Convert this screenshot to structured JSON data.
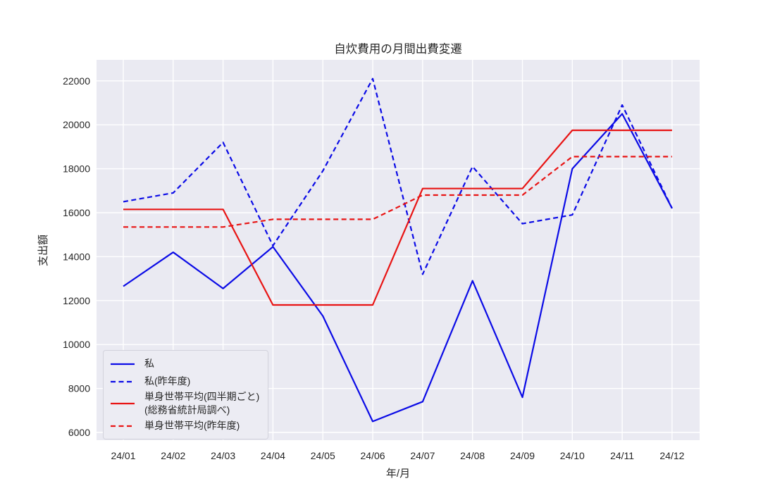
{
  "colors": {
    "figure_background": "#ffffff",
    "axes_background": "#eaeaf2",
    "grid": "#ffffff",
    "text": "#262626",
    "series_blue": "#0b0be6",
    "series_red": "#e81414",
    "legend_background": "#ececf3",
    "legend_border": "#d2d2dc"
  },
  "chart_data": {
    "type": "line",
    "title": "自炊費用の月間出費変遷",
    "xlabel": "年/月",
    "ylabel": "支出額",
    "categories": [
      "24/01",
      "24/02",
      "24/03",
      "24/04",
      "24/05",
      "24/06",
      "24/07",
      "24/08",
      "24/09",
      "24/10",
      "24/11",
      "24/12"
    ],
    "yticks": [
      6000,
      8000,
      10000,
      12000,
      14000,
      16000,
      18000,
      20000,
      22000
    ],
    "ylim": [
      5650,
      22950
    ],
    "grid": true,
    "legend_position": "lower left",
    "series": [
      {
        "name": "私",
        "style": "solid",
        "color": "#0b0be6",
        "values": [
          12650,
          14200,
          12550,
          14450,
          11300,
          6500,
          7400,
          12900,
          7600,
          18000,
          20500,
          16200
        ]
      },
      {
        "name": "私(昨年度)",
        "style": "dashed",
        "color": "#0b0be6",
        "values": [
          16500,
          16900,
          19200,
          14500,
          17900,
          22100,
          13200,
          18100,
          15500,
          15900,
          20900,
          16200
        ]
      },
      {
        "name": "単身世帯平均(四半期ごと)\n(総務省統計局調べ)",
        "style": "solid",
        "color": "#e81414",
        "values": [
          16150,
          16150,
          16150,
          11800,
          11800,
          11800,
          17100,
          17100,
          17100,
          19750,
          19750,
          19750
        ]
      },
      {
        "name": "単身世帯平均(昨年度)",
        "style": "dashed",
        "color": "#e81414",
        "values": [
          15350,
          15350,
          15350,
          15700,
          15700,
          15700,
          16800,
          16800,
          16800,
          18550,
          18550,
          18550
        ]
      }
    ]
  }
}
